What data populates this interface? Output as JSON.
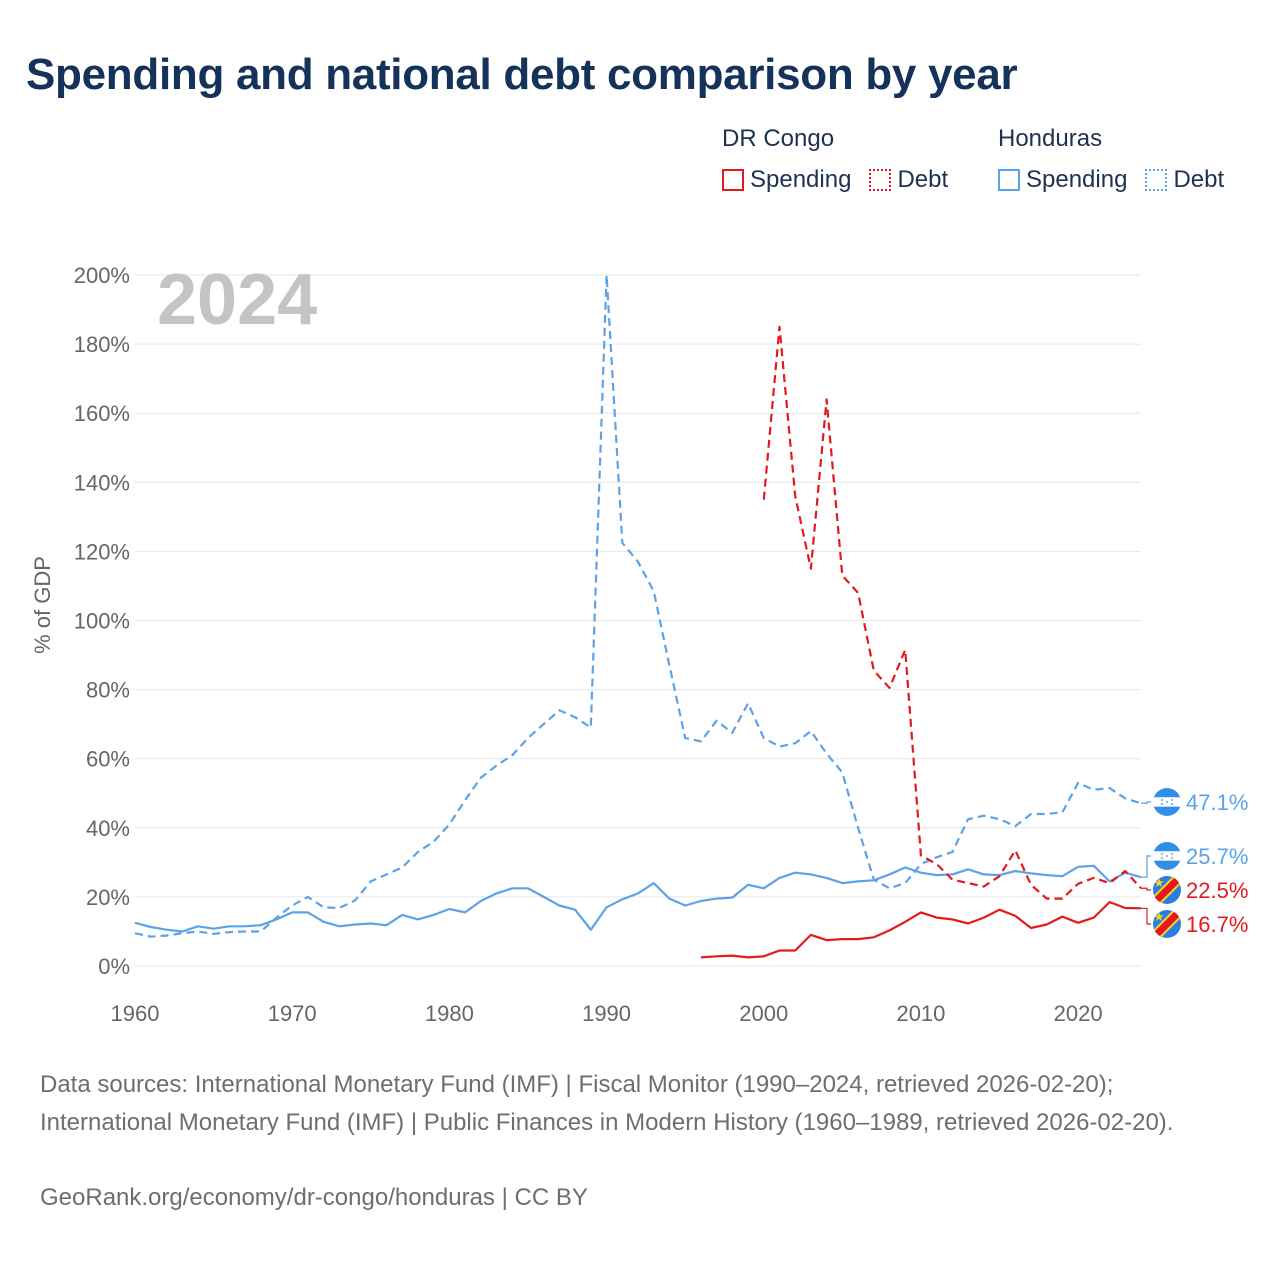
{
  "title": "Spending and national debt comparison by year",
  "footer": {
    "sources": "Data sources: International Monetary Fund (IMF) | Fiscal Monitor (1990–2024, retrieved 2026-02-20); International Monetary Fund (IMF) | Public Finances in Modern History (1960–1989, retrieved 2026-02-20).",
    "credit": "GeoRank.org/economy/dr-congo/honduras | CC BY"
  },
  "legend": {
    "groups": [
      {
        "country": "DR Congo",
        "color": "#e31a1c",
        "spending_label": "Spending",
        "debt_label": "Debt"
      },
      {
        "country": "Honduras",
        "color": "#5ba3e6",
        "spending_label": "Spending",
        "debt_label": "Debt"
      }
    ]
  },
  "chart_data": {
    "type": "line",
    "title": "Spending and national debt comparison by year",
    "year_label": "2024",
    "ylabel": "% of GDP",
    "xlabel": "",
    "xlim": [
      1960,
      2024
    ],
    "ylim": [
      0,
      200
    ],
    "x_ticks": [
      1960,
      1970,
      1980,
      1990,
      2000,
      2010,
      2020
    ],
    "y_ticks": [
      0,
      20,
      40,
      60,
      80,
      100,
      120,
      140,
      160,
      180,
      200
    ],
    "y_tick_suffix": "%",
    "grid": true,
    "series": [
      {
        "name": "Honduras Debt",
        "country": "Honduras",
        "metric": "Debt",
        "color": "#5ba3e6",
        "dash": true,
        "flag": "honduras",
        "end_label": "47.1%",
        "x": [
          1960,
          1961,
          1962,
          1963,
          1964,
          1965,
          1966,
          1967,
          1968,
          1969,
          1970,
          1971,
          1972,
          1973,
          1974,
          1975,
          1976,
          1977,
          1978,
          1979,
          1980,
          1981,
          1982,
          1983,
          1984,
          1985,
          1986,
          1987,
          1988,
          1989,
          1990,
          1991,
          1992,
          1993,
          1994,
          1995,
          1996,
          1997,
          1998,
          1999,
          2000,
          2001,
          2002,
          2003,
          2004,
          2005,
          2006,
          2007,
          2008,
          2009,
          2010,
          2011,
          2012,
          2013,
          2014,
          2015,
          2016,
          2017,
          2018,
          2019,
          2020,
          2021,
          2022,
          2023,
          2024
        ],
        "values": [
          9.5,
          8.5,
          8.8,
          9.5,
          10,
          9.3,
          9.8,
          10,
          10,
          14,
          17.5,
          20,
          17,
          16.8,
          19,
          24.5,
          26.5,
          28.5,
          33,
          36,
          41,
          48,
          54.5,
          58,
          61,
          66,
          70,
          74,
          72,
          69,
          200,
          122.5,
          117,
          108.5,
          87,
          66,
          65,
          71,
          67.5,
          76,
          66,
          63.5,
          64.5,
          68,
          61.5,
          56,
          40,
          25,
          22.5,
          24,
          29.5,
          31.5,
          33,
          42.5,
          43.5,
          42.5,
          40.5,
          44,
          44,
          44.5,
          53,
          51,
          51.5,
          48.5,
          47.1
        ]
      },
      {
        "name": "Honduras Spending",
        "country": "Honduras",
        "metric": "Spending",
        "color": "#5ba3e6",
        "dash": false,
        "flag": "honduras",
        "end_label": "25.7%",
        "x": [
          1960,
          1961,
          1962,
          1963,
          1964,
          1965,
          1966,
          1967,
          1968,
          1969,
          1970,
          1971,
          1972,
          1973,
          1974,
          1975,
          1976,
          1977,
          1978,
          1979,
          1980,
          1981,
          1982,
          1983,
          1984,
          1985,
          1986,
          1987,
          1988,
          1989,
          1990,
          1991,
          1992,
          1993,
          1994,
          1995,
          1996,
          1997,
          1998,
          1999,
          2000,
          2001,
          2002,
          2003,
          2004,
          2005,
          2006,
          2007,
          2008,
          2009,
          2010,
          2011,
          2012,
          2013,
          2014,
          2015,
          2016,
          2017,
          2018,
          2019,
          2020,
          2021,
          2022,
          2023,
          2024
        ],
        "values": [
          12.5,
          11.3,
          10.5,
          10,
          11.5,
          10.8,
          11.5,
          11.5,
          11.8,
          13.5,
          15.5,
          15.5,
          12.8,
          11.5,
          12,
          12.3,
          11.8,
          14.8,
          13.5,
          14.8,
          16.5,
          15.5,
          18.8,
          21,
          22.5,
          22.5,
          20,
          17.5,
          16.3,
          10.5,
          17,
          19.3,
          21,
          24,
          19.5,
          17.5,
          18.8,
          19.5,
          19.8,
          23.5,
          22.5,
          25.5,
          27,
          26.5,
          25.5,
          24,
          24.5,
          24.8,
          26.5,
          28.5,
          27,
          26.3,
          26.5,
          28,
          26.5,
          26.3,
          27.5,
          26.8,
          26.3,
          26,
          28.7,
          29,
          24.5,
          27,
          25.7
        ]
      },
      {
        "name": "DR Congo Debt",
        "country": "DR Congo",
        "metric": "Debt",
        "color": "#e31a1c",
        "dash": true,
        "flag": "drcongo",
        "end_label": "22.5%",
        "x": [
          2000,
          2001,
          2002,
          2003,
          2004,
          2005,
          2006,
          2007,
          2008,
          2009,
          2010,
          2011,
          2012,
          2013,
          2014,
          2015,
          2016,
          2017,
          2018,
          2019,
          2020,
          2021,
          2022,
          2023,
          2024
        ],
        "values": [
          135,
          185,
          136,
          115,
          164,
          113,
          108,
          85.5,
          80.5,
          91.5,
          32,
          29.5,
          25,
          24,
          23,
          26,
          33.5,
          23.5,
          19.5,
          19.5,
          23.8,
          25.5,
          24,
          27.5,
          22.5
        ]
      },
      {
        "name": "DR Congo Spending",
        "country": "DR Congo",
        "metric": "Spending",
        "color": "#e31a1c",
        "dash": false,
        "flag": "drcongo",
        "end_label": "16.7%",
        "x": [
          1996,
          1997,
          1998,
          1999,
          2000,
          2001,
          2002,
          2003,
          2004,
          2005,
          2006,
          2007,
          2008,
          2009,
          2010,
          2011,
          2012,
          2013,
          2014,
          2015,
          2016,
          2017,
          2018,
          2019,
          2020,
          2021,
          2022,
          2023,
          2024
        ],
        "values": [
          2.5,
          2.8,
          3,
          2.5,
          2.8,
          4.5,
          4.5,
          9,
          7.5,
          7.8,
          7.8,
          8.3,
          10.3,
          12.8,
          15.5,
          14,
          13.5,
          12.3,
          14,
          16.3,
          14.5,
          11,
          12,
          14.3,
          12.5,
          14,
          18.5,
          16.8,
          16.7
        ]
      }
    ]
  }
}
